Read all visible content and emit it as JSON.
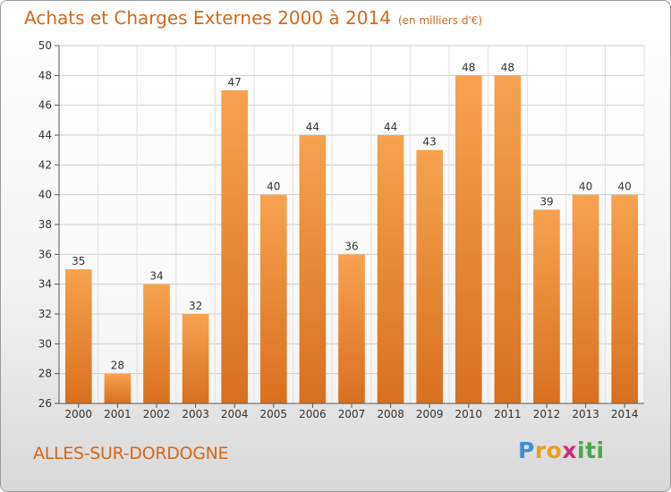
{
  "chart_data": {
    "type": "bar",
    "title": "Achats et Charges Externes 2000 à 2014",
    "subtitle": "(en milliers d'€)",
    "categories": [
      "2000",
      "2001",
      "2002",
      "2003",
      "2004",
      "2005",
      "2006",
      "2007",
      "2008",
      "2009",
      "2010",
      "2011",
      "2012",
      "2013",
      "2014"
    ],
    "values": [
      35,
      28,
      34,
      32,
      47,
      40,
      44,
      36,
      44,
      43,
      48,
      48,
      39,
      40,
      40
    ],
    "ylim": [
      26,
      50
    ],
    "yticks": [
      26,
      28,
      30,
      32,
      34,
      36,
      38,
      40,
      42,
      44,
      46,
      48,
      50
    ],
    "xlabel": "",
    "ylabel": "",
    "grid": true,
    "bar_color": "#f0923a"
  },
  "commune": "ALLES-SUR-DORDOGNE",
  "logo": {
    "letters": [
      "P",
      "r",
      "o",
      "x",
      "i",
      "t",
      "i"
    ],
    "colors": [
      "#3a8fd6",
      "#e8a020",
      "#e8a020",
      "#cc2e7a",
      "#4aa84a",
      "#4aa84a",
      "#4aa84a"
    ]
  }
}
